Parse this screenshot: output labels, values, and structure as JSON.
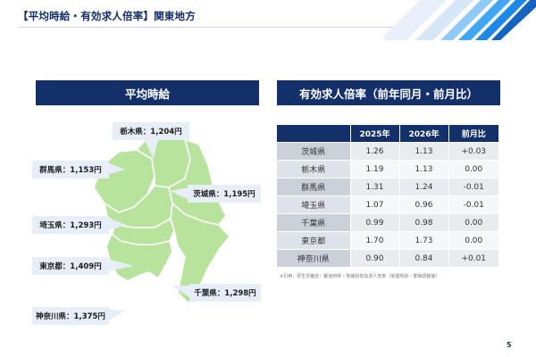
{
  "slide": {
    "title": "【平均時給・有効求人倍率】関東地方",
    "page_number": "5",
    "colors": {
      "navy": "#14306b",
      "accent_blue": "#1e88e5",
      "map_fill": "#b7e39c",
      "callout_bg": "#e7eef8"
    }
  },
  "left_panel": {
    "header": "平均時給",
    "callouts": [
      {
        "text": "栃木県：1,204円"
      },
      {
        "text": "群馬県：1,153円"
      },
      {
        "text": "茨城県：1,195円"
      },
      {
        "text": "埼玉県：1,293円"
      },
      {
        "text": "東京都：1,409円"
      },
      {
        "text": "千葉県：1,298円"
      },
      {
        "text": "神奈川県：1,375円"
      }
    ]
  },
  "right_panel": {
    "header": "有効求人倍率（前年同月・前月比）",
    "columns": [
      "",
      "2025年",
      "2026年",
      "前月比"
    ],
    "rows": [
      [
        "茨城県",
        "1.26",
        "1.13",
        "+0.03"
      ],
      [
        "栃木県",
        "1.19",
        "1.13",
        "0.00"
      ],
      [
        "群馬県",
        "1.31",
        "1.24",
        "-0.01"
      ],
      [
        "埼玉県",
        "1.07",
        "0.96",
        "-0.01"
      ],
      [
        "千葉県",
        "0.99",
        "0.98",
        "0.00"
      ],
      [
        "東京都",
        "1.70",
        "1.73",
        "0.00"
      ],
      [
        "神奈川県",
        "0.90",
        "0.84",
        "+0.01"
      ]
    ],
    "note": "※引用：厚生労働省：都道府県・地域別有効求人倍率（受理地別・季節調整値）"
  }
}
